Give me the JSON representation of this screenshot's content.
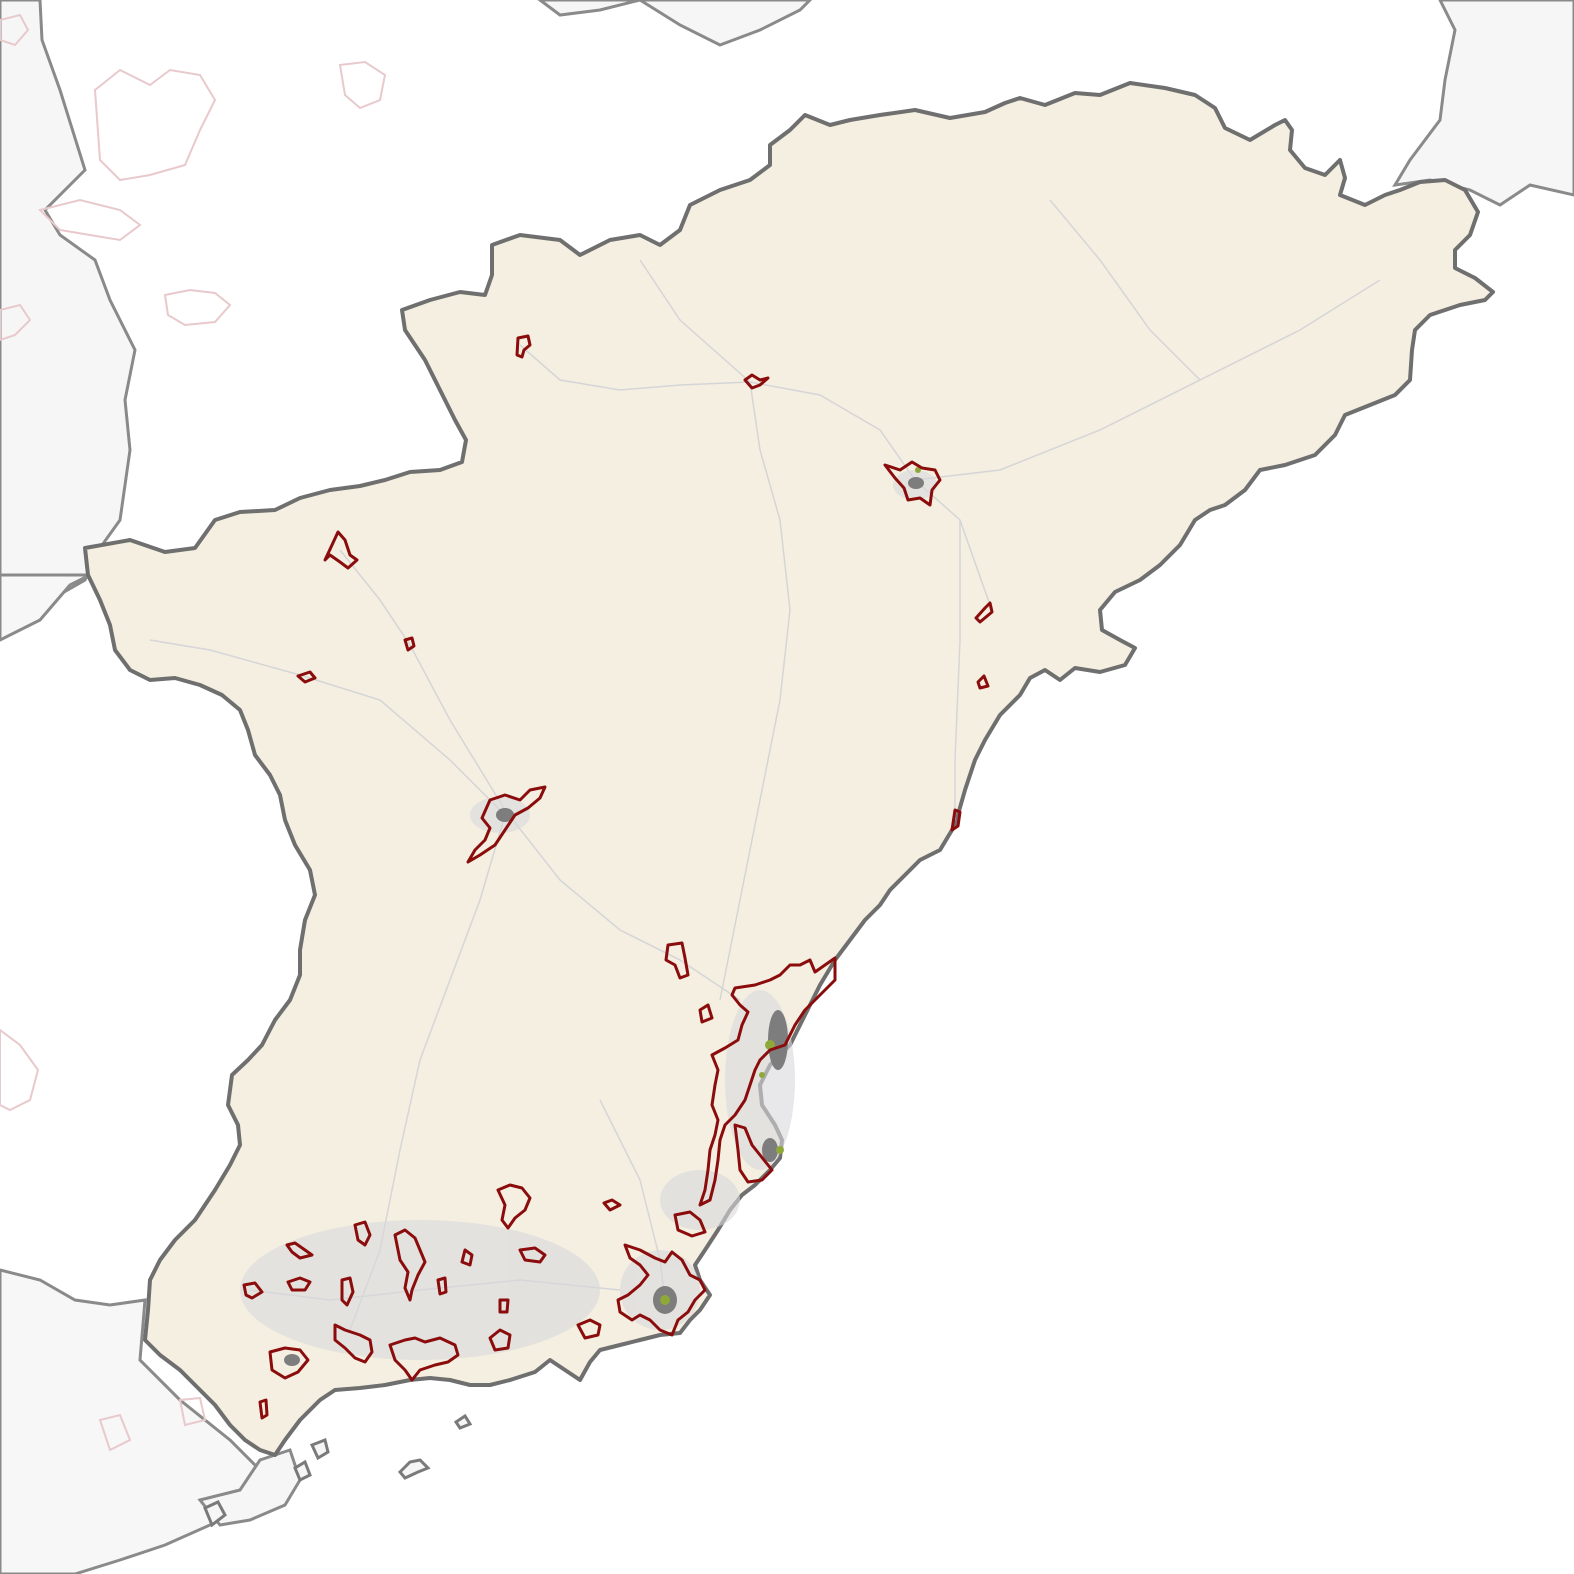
{
  "map": {
    "colors": {
      "background": "#ffffff",
      "neighbor_fill": "#f5f5f5",
      "neighbor_border": "#888888",
      "region_fill": "#f4efe0",
      "region_border": "#6f6f6f",
      "urban_outline": "#8b0c0c",
      "urban_fill": "#cfcfcf",
      "urban_core": "#7d7d7d",
      "green_patch": "#8fa83a",
      "faint_urban_outline": "#e8c9cc",
      "roads": "#c9cbd6"
    },
    "layers": [
      "neighbor-regions",
      "study-region",
      "road-network",
      "urban-extent-outlines",
      "urban-core-patches",
      "islands"
    ]
  }
}
